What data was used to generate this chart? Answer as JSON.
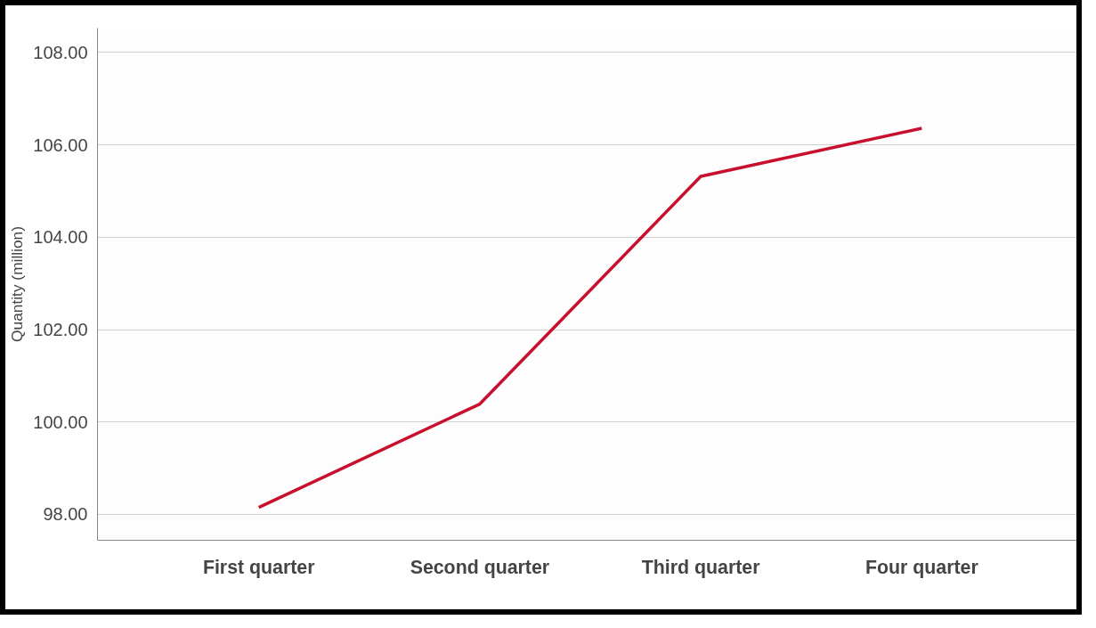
{
  "chart_data": {
    "type": "line",
    "ylabel": "Quantity (million)",
    "categories": [
      "First quarter",
      "Second quarter",
      "Third quarter",
      "Four quarter"
    ],
    "series": [
      {
        "color": "#c8102e",
        "values": [
          98.15,
          100.39,
          105.32,
          106.36
        ]
      }
    ],
    "ylim": [
      97.44,
      108.53
    ],
    "yticks": [
      {
        "value": 98,
        "label": "98.00"
      },
      {
        "value": 100,
        "label": "100.00"
      },
      {
        "value": 102,
        "label": "102.00"
      },
      {
        "value": 104,
        "label": "104.00"
      },
      {
        "value": 106,
        "label": "106.00"
      },
      {
        "value": 108,
        "label": "108.00"
      }
    ],
    "grid": "y",
    "line_style": "solid",
    "marker": "none"
  }
}
